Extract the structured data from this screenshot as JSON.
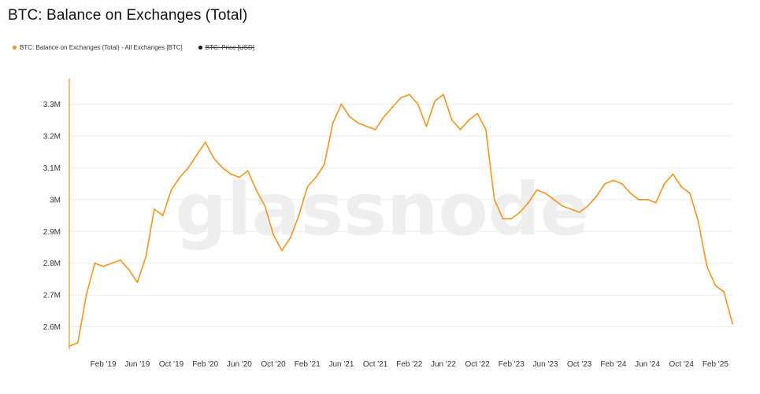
{
  "title": "BTC: Balance on Exchanges (Total)",
  "legend": [
    {
      "label": "BTC: Balance on Exchanges (Total) - All Exchanges [BTC]",
      "color": "#F7931A",
      "active": true
    },
    {
      "label": "BTC: Price [USD]",
      "color": "#111111",
      "active": false
    }
  ],
  "watermark": "glassnode",
  "colors": {
    "series": "#F7931A",
    "grid": "#ececec",
    "axis_text": "#333333"
  },
  "chart_data": {
    "type": "line",
    "title": "BTC: Balance on Exchanges (Total)",
    "ylabel": "",
    "xlabel": "",
    "ylim": [
      2.53,
      3.38
    ],
    "y_ticks": [
      {
        "v": 2.6,
        "label": "2.6M"
      },
      {
        "v": 2.7,
        "label": "2.7M"
      },
      {
        "v": 2.8,
        "label": "2.8M"
      },
      {
        "v": 2.9,
        "label": "2.9M"
      },
      {
        "v": 3.0,
        "label": "3M"
      },
      {
        "v": 3.1,
        "label": "3.1M"
      },
      {
        "v": 3.2,
        "label": "3.2M"
      },
      {
        "v": 3.3,
        "label": "3.3M"
      }
    ],
    "x_ticks": [
      "Feb '19",
      "Jun '19",
      "Oct '19",
      "Feb '20",
      "Jun '20",
      "Oct '20",
      "Feb '21",
      "Jun '21",
      "Oct '21",
      "Feb '22",
      "Jun '22",
      "Oct '22",
      "Feb '23",
      "Jun '23",
      "Oct '23",
      "Feb '24",
      "Jun '24",
      "Oct '24",
      "Feb '25"
    ],
    "x_range": [
      "2018-10",
      "2025-04"
    ],
    "grid": true,
    "legend_position": "top-left",
    "series": [
      {
        "name": "BTC: Balance on Exchanges (Total) - All Exchanges [BTC]",
        "unit": "M BTC",
        "points": [
          [
            "2018-10",
            2.54
          ],
          [
            "2018-11",
            2.55
          ],
          [
            "2018-12",
            2.7
          ],
          [
            "2019-01",
            2.8
          ],
          [
            "2019-02",
            2.79
          ],
          [
            "2019-03",
            2.8
          ],
          [
            "2019-04",
            2.81
          ],
          [
            "2019-05",
            2.78
          ],
          [
            "2019-06",
            2.74
          ],
          [
            "2019-07",
            2.82
          ],
          [
            "2019-08",
            2.97
          ],
          [
            "2019-09",
            2.95
          ],
          [
            "2019-10",
            3.03
          ],
          [
            "2019-11",
            3.07
          ],
          [
            "2019-12",
            3.1
          ],
          [
            "2020-01",
            3.14
          ],
          [
            "2020-02",
            3.18
          ],
          [
            "2020-03",
            3.13
          ],
          [
            "2020-04",
            3.1
          ],
          [
            "2020-05",
            3.08
          ],
          [
            "2020-06",
            3.07
          ],
          [
            "2020-07",
            3.09
          ],
          [
            "2020-08",
            3.03
          ],
          [
            "2020-09",
            2.98
          ],
          [
            "2020-10",
            2.89
          ],
          [
            "2020-11",
            2.84
          ],
          [
            "2020-12",
            2.88
          ],
          [
            "2021-01",
            2.95
          ],
          [
            "2021-02",
            3.04
          ],
          [
            "2021-03",
            3.07
          ],
          [
            "2021-04",
            3.11
          ],
          [
            "2021-05",
            3.24
          ],
          [
            "2021-06",
            3.3
          ],
          [
            "2021-07",
            3.26
          ],
          [
            "2021-08",
            3.24
          ],
          [
            "2021-09",
            3.23
          ],
          [
            "2021-10",
            3.22
          ],
          [
            "2021-11",
            3.26
          ],
          [
            "2021-12",
            3.29
          ],
          [
            "2022-01",
            3.32
          ],
          [
            "2022-02",
            3.33
          ],
          [
            "2022-03",
            3.3
          ],
          [
            "2022-04",
            3.23
          ],
          [
            "2022-05",
            3.31
          ],
          [
            "2022-06",
            3.33
          ],
          [
            "2022-07",
            3.25
          ],
          [
            "2022-08",
            3.22
          ],
          [
            "2022-09",
            3.25
          ],
          [
            "2022-10",
            3.27
          ],
          [
            "2022-11",
            3.22
          ],
          [
            "2022-12",
            3.0
          ],
          [
            "2023-01",
            2.94
          ],
          [
            "2023-02",
            2.94
          ],
          [
            "2023-03",
            2.96
          ],
          [
            "2023-04",
            2.99
          ],
          [
            "2023-05",
            3.03
          ],
          [
            "2023-06",
            3.02
          ],
          [
            "2023-07",
            3.0
          ],
          [
            "2023-08",
            2.98
          ],
          [
            "2023-09",
            2.97
          ],
          [
            "2023-10",
            2.96
          ],
          [
            "2023-11",
            2.98
          ],
          [
            "2023-12",
            3.01
          ],
          [
            "2024-01",
            3.05
          ],
          [
            "2024-02",
            3.06
          ],
          [
            "2024-03",
            3.05
          ],
          [
            "2024-04",
            3.02
          ],
          [
            "2024-05",
            3.0
          ],
          [
            "2024-06",
            3.0
          ],
          [
            "2024-07",
            2.99
          ],
          [
            "2024-08",
            3.05
          ],
          [
            "2024-09",
            3.08
          ],
          [
            "2024-10",
            3.04
          ],
          [
            "2024-11",
            3.02
          ],
          [
            "2024-12",
            2.93
          ],
          [
            "2025-01",
            2.79
          ],
          [
            "2025-02",
            2.73
          ],
          [
            "2025-03",
            2.71
          ],
          [
            "2025-04",
            2.61
          ]
        ]
      }
    ]
  }
}
